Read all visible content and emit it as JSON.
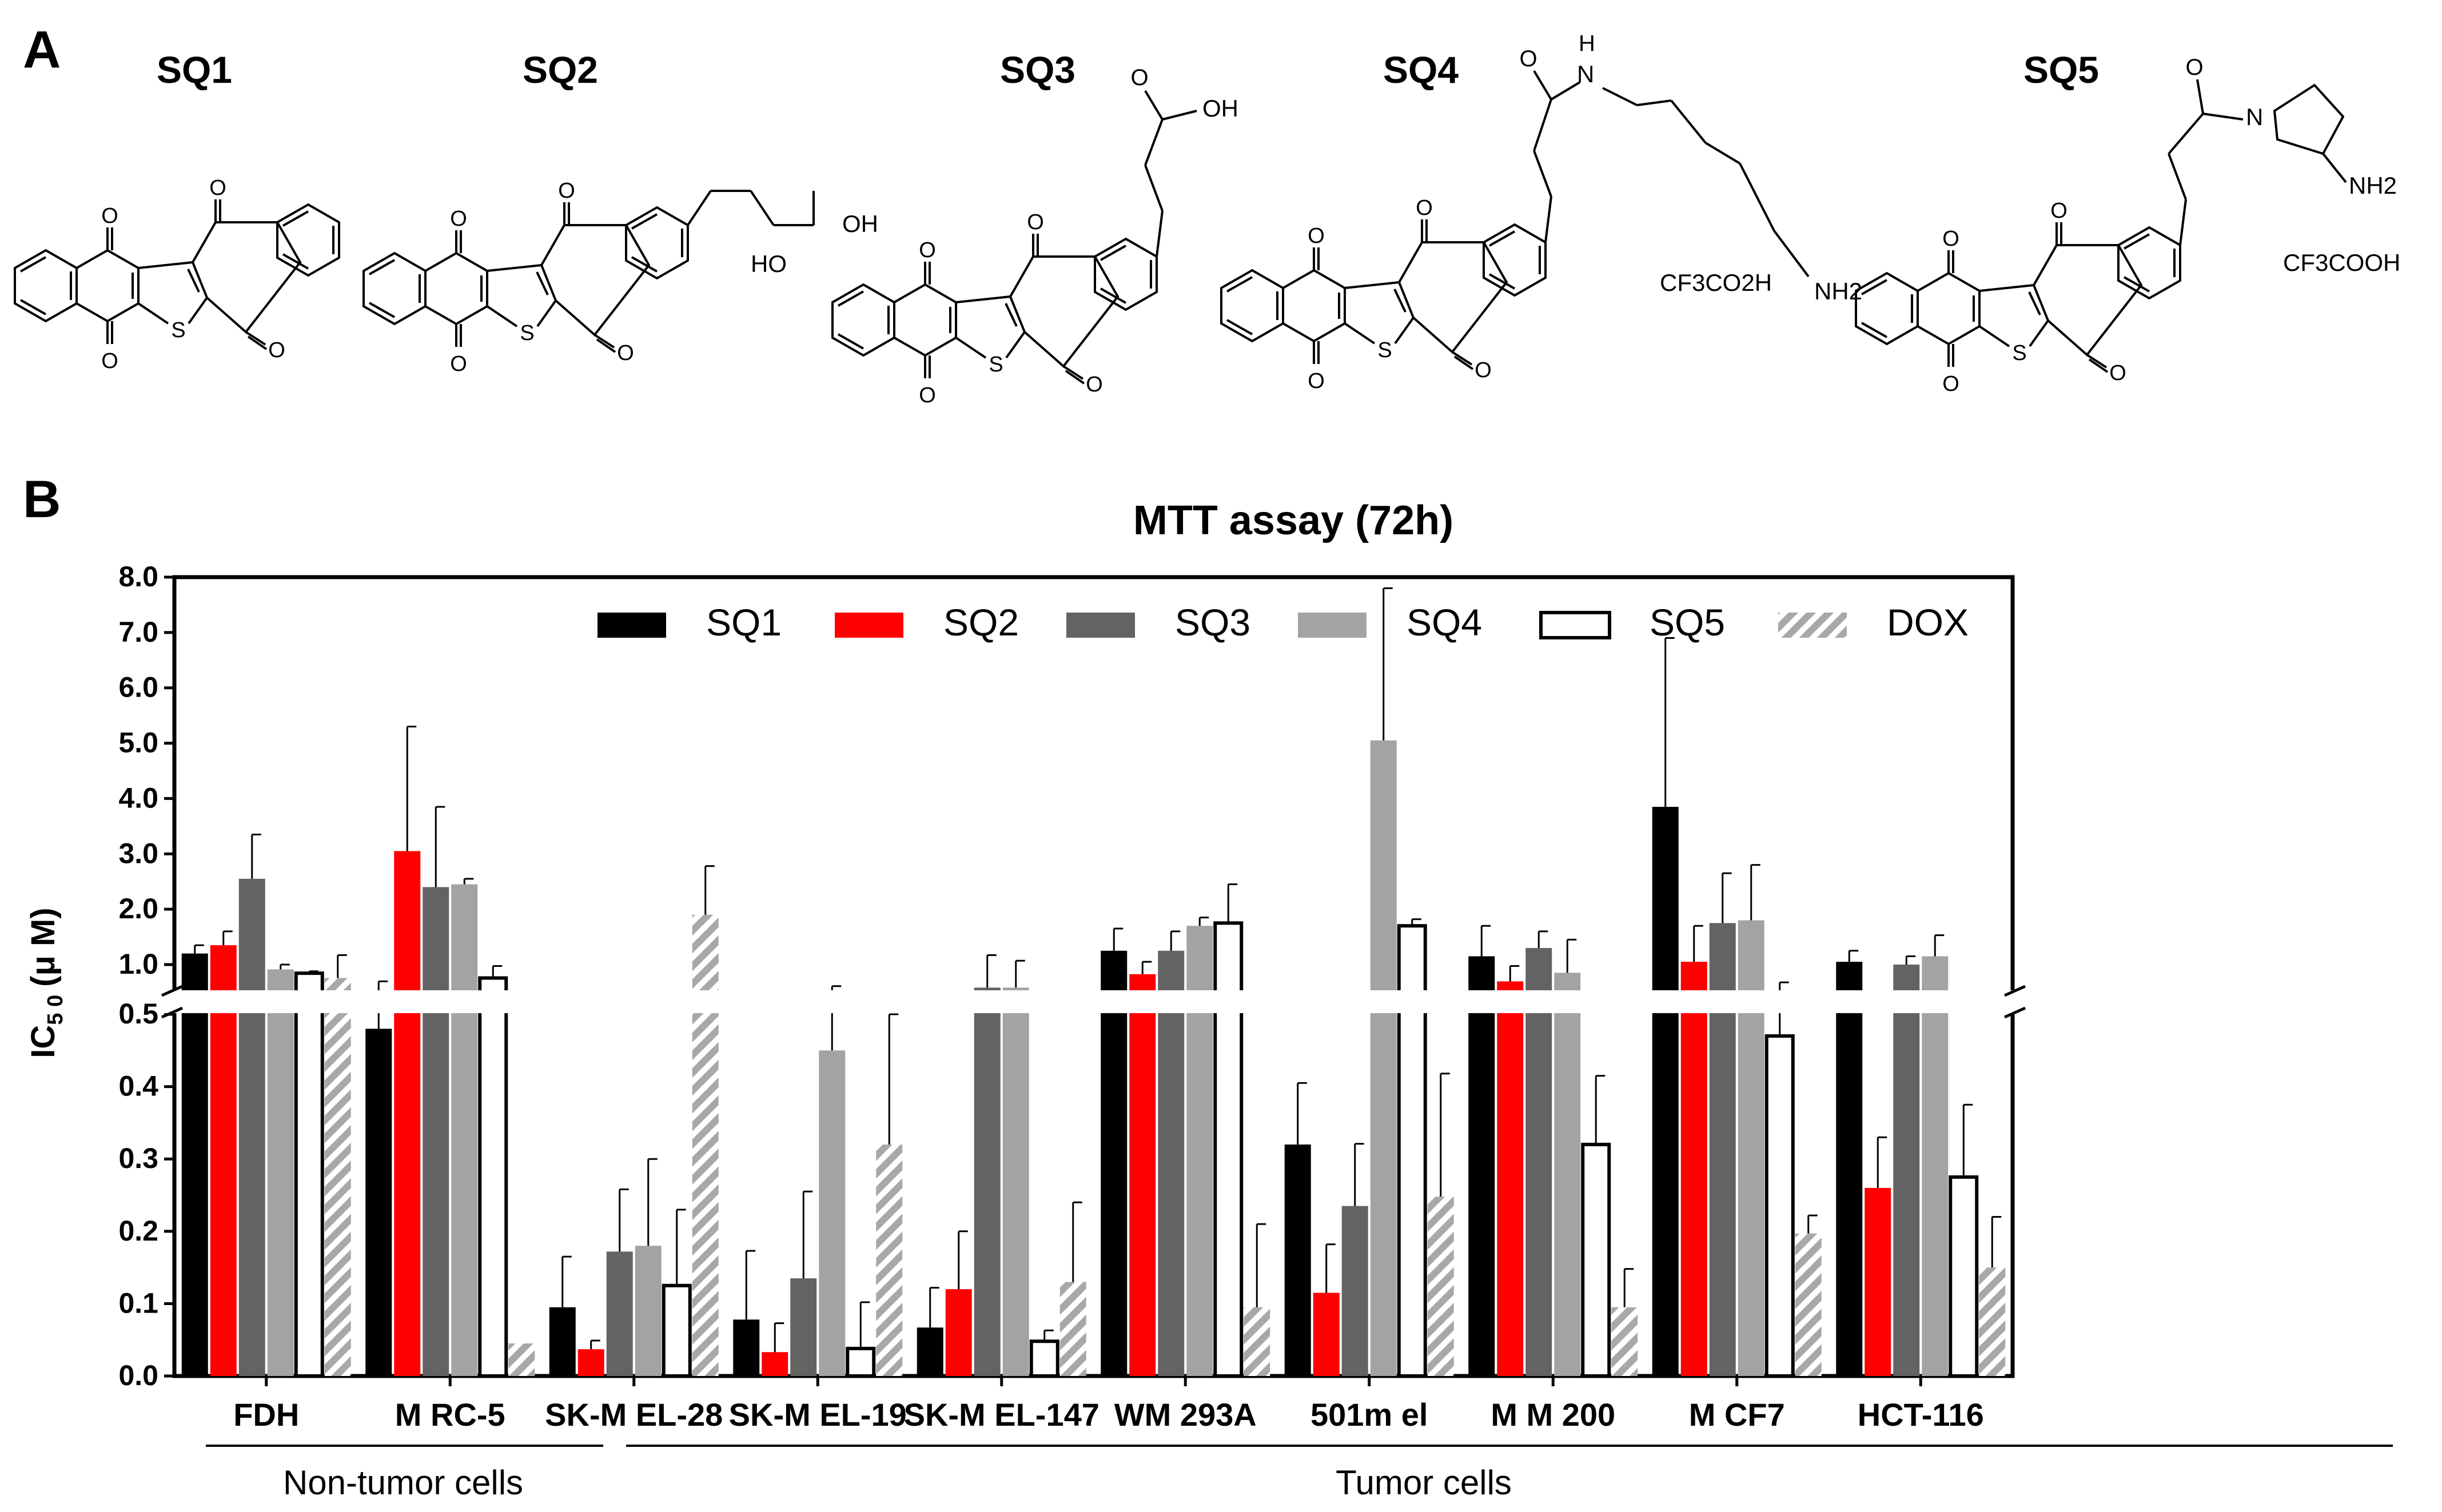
{
  "panel_a": {
    "letter": "A",
    "compounds": [
      {
        "id": "SQ1",
        "label": "SQ1",
        "side_chain": null,
        "annotations": []
      },
      {
        "id": "SQ2",
        "label": "SQ2",
        "side_chain": "diol",
        "annotations": [
          "OH",
          "HO"
        ]
      },
      {
        "id": "SQ3",
        "label": "SQ3",
        "side_chain": "acid",
        "annotations": [
          "OH"
        ]
      },
      {
        "id": "SQ4",
        "label": "SQ4",
        "side_chain": "aminohexylamide",
        "annotations": [
          "H",
          "N",
          "NH2",
          "CF3CO2H"
        ]
      },
      {
        "id": "SQ5",
        "label": "SQ5",
        "side_chain": "aminopyrrolidine",
        "annotations": [
          "N",
          "NH2",
          "CF3COOH"
        ]
      }
    ],
    "atom_labels": {
      "oxygen": "O",
      "sulfur": "S"
    }
  },
  "panel_b": {
    "letter": "B",
    "group_labels": [
      "Non-tumor cells",
      "Tumor cells"
    ]
  },
  "colors": {
    "SQ1": "#000000",
    "SQ2": "#ff0000",
    "SQ3": "#636363",
    "SQ4": "#a3a3a3",
    "SQ5": "#ffffff",
    "DOX": "#a8a8a8"
  },
  "chart_data": {
    "type": "bar",
    "title": "MTT assay (72h)",
    "xlabel": "",
    "ylabel": "IC",
    "ylabel_sub": "5 0",
    "ylabel_unit": "(μ M)",
    "axis_break": true,
    "ylim_lower": [
      0,
      0.5
    ],
    "ylim_upper": [
      0.5,
      8.0
    ],
    "yticks_lower": [
      "0.0",
      "0.1",
      "0.2",
      "0.3",
      "0.4",
      "0.5"
    ],
    "yticks_upper": [
      "1.0",
      "2.0",
      "3.0",
      "4.0",
      "5.0",
      "6.0",
      "7.0",
      "8.0"
    ],
    "legend_position": "top",
    "categories": [
      "FDH",
      "M RC-5",
      "SK-M EL-28",
      "SK-M EL-19",
      "SK-M EL-147",
      "WM 293A",
      "501m el",
      "M M 200",
      "M CF7",
      "HCT-116"
    ],
    "series": [
      {
        "name": "SQ1",
        "values": [
          1.2,
          0.48,
          0.095,
          0.078,
          0.067,
          1.25,
          0.32,
          1.15,
          3.85,
          1.05
        ],
        "errors": [
          0.15,
          0.17,
          0.07,
          0.095,
          0.055,
          0.4,
          0.085,
          0.55,
          3.05,
          0.2
        ]
      },
      {
        "name": "SQ2",
        "values": [
          1.35,
          3.05,
          0.037,
          0.033,
          0.12,
          0.8,
          0.115,
          0.65,
          1.05,
          0.26
        ],
        "errors": [
          0.25,
          2.25,
          0.012,
          0.04,
          0.08,
          0.25,
          0.067,
          0.32,
          0.65,
          0.07
        ]
      },
      {
        "name": "SQ3",
        "values": [
          2.55,
          2.4,
          0.172,
          0.135,
          0.52,
          1.25,
          0.235,
          1.3,
          1.75,
          1.0
        ],
        "errors": [
          0.8,
          1.45,
          0.086,
          0.12,
          0.65,
          0.35,
          0.086,
          0.3,
          0.9,
          0.15
        ]
      },
      {
        "name": "SQ4",
        "values": [
          0.9,
          2.45,
          0.18,
          0.45,
          0.52,
          1.7,
          5.05,
          0.83,
          1.8,
          1.15
        ],
        "errors": [
          0.1,
          0.1,
          0.12,
          0.1,
          0.55,
          0.15,
          2.75,
          0.62,
          1.0,
          0.38
        ]
      },
      {
        "name": "SQ5",
        "values": [
          0.82,
          0.72,
          0.125,
          0.038,
          0.048,
          1.75,
          1.7,
          0.32,
          0.47,
          0.275
        ],
        "errors": [
          0.04,
          0.25,
          0.105,
          0.064,
          0.015,
          0.7,
          0.12,
          0.095,
          0.16,
          0.1
        ]
      },
      {
        "name": "DOX",
        "values": [
          0.72,
          0.045,
          1.9,
          0.32,
          0.13,
          0.095,
          0.248,
          0.095,
          0.197,
          0.15
        ],
        "errors": [
          0.45,
          0.0,
          0.88,
          0.18,
          0.11,
          0.115,
          0.17,
          0.053,
          0.025,
          0.07
        ]
      }
    ]
  }
}
